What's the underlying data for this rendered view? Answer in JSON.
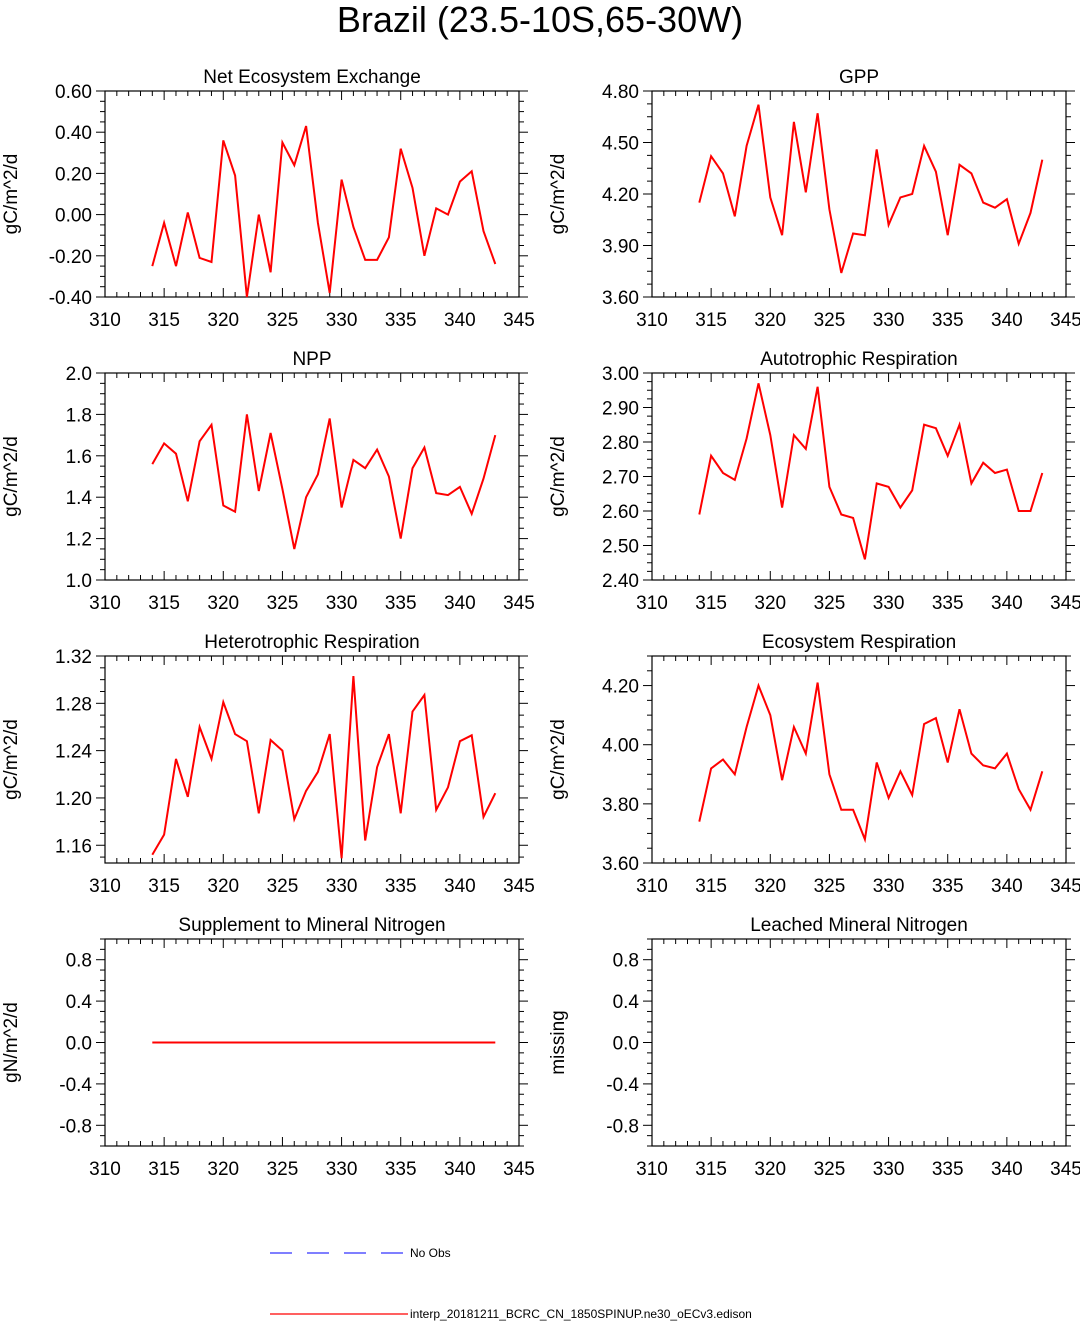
{
  "title": "Brazil (23.5-10S,65-30W)",
  "chart_data": [
    {
      "type": "line",
      "title": "Net Ecosystem Exchange",
      "ylabel": "gC/m^2/d",
      "xlim": [
        310,
        345
      ],
      "xticks": [
        310,
        315,
        320,
        325,
        330,
        335,
        340,
        345
      ],
      "ylim": [
        -0.4,
        0.6
      ],
      "yticks": [
        -0.4,
        -0.2,
        0.0,
        0.2,
        0.4,
        0.6
      ],
      "ytick_labels": [
        "-0.40",
        "-0.20",
        "0.00",
        "0.20",
        "0.40",
        "0.60"
      ],
      "x": [
        314,
        315,
        316,
        317,
        318,
        319,
        320,
        321,
        322,
        323,
        324,
        325,
        326,
        327,
        328,
        329,
        330,
        331,
        332,
        333,
        334,
        335,
        336,
        337,
        338,
        339,
        340,
        341,
        342,
        343
      ],
      "series": [
        {
          "color": "#ff0000",
          "values": [
            -0.25,
            -0.04,
            -0.25,
            0.01,
            -0.21,
            -0.23,
            0.36,
            0.19,
            -0.4,
            0.0,
            -0.28,
            0.35,
            0.24,
            0.43,
            -0.04,
            -0.38,
            0.17,
            -0.06,
            -0.22,
            -0.22,
            -0.11,
            0.32,
            0.13,
            -0.2,
            0.03,
            0.0,
            0.16,
            0.21,
            -0.08,
            -0.24
          ]
        }
      ]
    },
    {
      "type": "line",
      "title": "GPP",
      "ylabel": "gC/m^2/d",
      "xlim": [
        310,
        345
      ],
      "xticks": [
        310,
        315,
        320,
        325,
        330,
        335,
        340,
        345
      ],
      "ylim": [
        3.6,
        4.8
      ],
      "yticks": [
        3.6,
        3.9,
        4.2,
        4.5,
        4.8
      ],
      "ytick_labels": [
        "3.60",
        "3.90",
        "4.20",
        "4.50",
        "4.80"
      ],
      "x": [
        314,
        315,
        316,
        317,
        318,
        319,
        320,
        321,
        322,
        323,
        324,
        325,
        326,
        327,
        328,
        329,
        330,
        331,
        332,
        333,
        334,
        335,
        336,
        337,
        338,
        339,
        340,
        341,
        342,
        343
      ],
      "series": [
        {
          "color": "#ff0000",
          "values": [
            4.15,
            4.42,
            4.32,
            4.07,
            4.48,
            4.72,
            4.18,
            3.96,
            4.62,
            4.21,
            4.67,
            4.11,
            3.74,
            3.97,
            3.96,
            4.46,
            4.02,
            4.18,
            4.2,
            4.48,
            4.33,
            3.96,
            4.37,
            4.32,
            4.15,
            4.12,
            4.17,
            3.91,
            4.09,
            4.4
          ]
        }
      ]
    },
    {
      "type": "line",
      "title": "NPP",
      "ylabel": "gC/m^2/d",
      "xlim": [
        310,
        345
      ],
      "xticks": [
        310,
        315,
        320,
        325,
        330,
        335,
        340,
        345
      ],
      "ylim": [
        1.0,
        2.0
      ],
      "yticks": [
        1.0,
        1.2,
        1.4,
        1.6,
        1.8,
        2.0
      ],
      "ytick_labels": [
        "1.0",
        "1.2",
        "1.4",
        "1.6",
        "1.8",
        "2.0"
      ],
      "x": [
        314,
        315,
        316,
        317,
        318,
        319,
        320,
        321,
        322,
        323,
        324,
        325,
        326,
        327,
        328,
        329,
        330,
        331,
        332,
        333,
        334,
        335,
        336,
        337,
        338,
        339,
        340,
        341,
        342,
        343
      ],
      "series": [
        {
          "color": "#ff0000",
          "values": [
            1.56,
            1.66,
            1.61,
            1.38,
            1.67,
            1.75,
            1.36,
            1.33,
            1.8,
            1.43,
            1.71,
            1.44,
            1.15,
            1.4,
            1.51,
            1.78,
            1.35,
            1.58,
            1.54,
            1.63,
            1.5,
            1.2,
            1.54,
            1.64,
            1.42,
            1.41,
            1.45,
            1.32,
            1.49,
            1.7
          ]
        }
      ]
    },
    {
      "type": "line",
      "title": "Autotrophic Respiration",
      "ylabel": "gC/m^2/d",
      "xlim": [
        310,
        345
      ],
      "xticks": [
        310,
        315,
        320,
        325,
        330,
        335,
        340,
        345
      ],
      "ylim": [
        2.4,
        3.0
      ],
      "yticks": [
        2.4,
        2.5,
        2.6,
        2.7,
        2.8,
        2.9,
        3.0
      ],
      "ytick_labels": [
        "2.40",
        "2.50",
        "2.60",
        "2.70",
        "2.80",
        "2.90",
        "3.00"
      ],
      "x": [
        314,
        315,
        316,
        317,
        318,
        319,
        320,
        321,
        322,
        323,
        324,
        325,
        326,
        327,
        328,
        329,
        330,
        331,
        332,
        333,
        334,
        335,
        336,
        337,
        338,
        339,
        340,
        341,
        342,
        343
      ],
      "series": [
        {
          "color": "#ff0000",
          "values": [
            2.59,
            2.76,
            2.71,
            2.69,
            2.81,
            2.97,
            2.82,
            2.61,
            2.82,
            2.78,
            2.96,
            2.67,
            2.59,
            2.58,
            2.46,
            2.68,
            2.67,
            2.61,
            2.66,
            2.85,
            2.84,
            2.76,
            2.85,
            2.68,
            2.74,
            2.71,
            2.72,
            2.6,
            2.6,
            2.71
          ]
        }
      ]
    },
    {
      "type": "line",
      "title": "Heterotrophic Respiration",
      "ylabel": "gC/m^2/d",
      "xlim": [
        310,
        345
      ],
      "xticks": [
        310,
        315,
        320,
        325,
        330,
        335,
        340,
        345
      ],
      "ylim": [
        1.145,
        1.32
      ],
      "yticks": [
        1.16,
        1.2,
        1.24,
        1.28,
        1.32
      ],
      "ytick_labels": [
        "1.16",
        "1.20",
        "1.24",
        "1.28",
        "1.32"
      ],
      "x": [
        314,
        315,
        316,
        317,
        318,
        319,
        320,
        321,
        322,
        323,
        324,
        325,
        326,
        327,
        328,
        329,
        330,
        331,
        332,
        333,
        334,
        335,
        336,
        337,
        338,
        339,
        340,
        341,
        342,
        343
      ],
      "series": [
        {
          "color": "#ff0000",
          "values": [
            1.152,
            1.169,
            1.233,
            1.201,
            1.26,
            1.233,
            1.281,
            1.254,
            1.248,
            1.187,
            1.249,
            1.24,
            1.182,
            1.206,
            1.222,
            1.254,
            1.149,
            1.303,
            1.164,
            1.226,
            1.254,
            1.187,
            1.273,
            1.287,
            1.19,
            1.209,
            1.248,
            1.253,
            1.184,
            1.204
          ]
        }
      ]
    },
    {
      "type": "line",
      "title": "Ecosystem Respiration",
      "ylabel": "gC/m^2/d",
      "xlim": [
        310,
        345
      ],
      "xticks": [
        310,
        315,
        320,
        325,
        330,
        335,
        340,
        345
      ],
      "ylim": [
        3.6,
        4.3
      ],
      "yticks": [
        3.6,
        3.8,
        4.0,
        4.2
      ],
      "ytick_labels": [
        "3.60",
        "3.80",
        "4.00",
        "4.20"
      ],
      "x": [
        314,
        315,
        316,
        317,
        318,
        319,
        320,
        321,
        322,
        323,
        324,
        325,
        326,
        327,
        328,
        329,
        330,
        331,
        332,
        333,
        334,
        335,
        336,
        337,
        338,
        339,
        340,
        341,
        342,
        343
      ],
      "series": [
        {
          "color": "#ff0000",
          "values": [
            3.74,
            3.92,
            3.95,
            3.9,
            4.06,
            4.2,
            4.1,
            3.88,
            4.06,
            3.97,
            4.21,
            3.9,
            3.78,
            3.78,
            3.68,
            3.94,
            3.82,
            3.91,
            3.83,
            4.07,
            4.09,
            3.94,
            4.12,
            3.97,
            3.93,
            3.92,
            3.97,
            3.85,
            3.78,
            3.91
          ]
        }
      ]
    },
    {
      "type": "line",
      "title": "Supplement to Mineral Nitrogen",
      "ylabel": "gN/m^2/d",
      "xlim": [
        310,
        345
      ],
      "xticks": [
        310,
        315,
        320,
        325,
        330,
        335,
        340,
        345
      ],
      "ylim": [
        -1.0,
        1.0
      ],
      "yticks": [
        -0.8,
        -0.4,
        0.0,
        0.4,
        0.8
      ],
      "ytick_labels": [
        "-0.8",
        "-0.4",
        "0.0",
        "0.4",
        "0.8"
      ],
      "x": [
        314,
        315,
        316,
        317,
        318,
        319,
        320,
        321,
        322,
        323,
        324,
        325,
        326,
        327,
        328,
        329,
        330,
        331,
        332,
        333,
        334,
        335,
        336,
        337,
        338,
        339,
        340,
        341,
        342,
        343
      ],
      "series": [
        {
          "color": "#ff0000",
          "values": [
            0,
            0,
            0,
            0,
            0,
            0,
            0,
            0,
            0,
            0,
            0,
            0,
            0,
            0,
            0,
            0,
            0,
            0,
            0,
            0,
            0,
            0,
            0,
            0,
            0,
            0,
            0,
            0,
            0,
            0
          ]
        }
      ]
    },
    {
      "type": "line",
      "title": "Leached Mineral Nitrogen",
      "ylabel": "missing",
      "xlim": [
        310,
        345
      ],
      "xticks": [
        310,
        315,
        320,
        325,
        330,
        335,
        340,
        345
      ],
      "ylim": [
        -1.0,
        1.0
      ],
      "yticks": [
        -0.8,
        -0.4,
        0.0,
        0.4,
        0.8
      ],
      "ytick_labels": [
        "-0.8",
        "-0.4",
        "0.0",
        "0.4",
        "0.8"
      ],
      "x": [],
      "series": []
    }
  ],
  "legend": [
    {
      "label": "No Obs",
      "color": "#3333ff",
      "dash": "dashed"
    },
    {
      "label": "interp_20181211_BCRC_CN_1850SPINUP.ne30_oECv3.edison",
      "color": "#ff0000",
      "dash": "solid"
    }
  ]
}
